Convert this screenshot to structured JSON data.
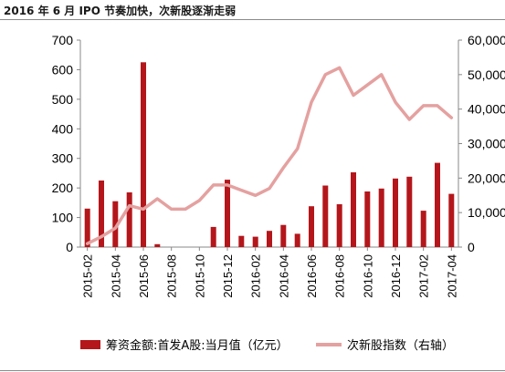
{
  "title": "2016 年 6 月 IPO 节奏加快，次新股逐渐走弱",
  "colors": {
    "bar": "#b4161b",
    "line": "#e4a1a0"
  },
  "chart_data": {
    "type": "bar+line",
    "title": "2016 年 6 月 IPO 节奏加快，次新股逐渐走弱",
    "categories": [
      "2015-02",
      "2015-03",
      "2015-04",
      "2015-05",
      "2015-06",
      "2015-07",
      "2015-08",
      "2015-09",
      "2015-10",
      "2015-11",
      "2015-12",
      "2016-01",
      "2016-02",
      "2016-03",
      "2016-04",
      "2016-05",
      "2016-06",
      "2016-07",
      "2016-08",
      "2016-09",
      "2016-10",
      "2016-11",
      "2016-12",
      "2017-01",
      "2017-02",
      "2017-03",
      "2017-04"
    ],
    "x_tick_labels": [
      "2015-02",
      "2015-04",
      "2015-06",
      "2015-08",
      "2015-10",
      "2015-12",
      "2016-02",
      "2016-04",
      "2016-06",
      "2016-08",
      "2016-10",
      "2016-12",
      "2017-02",
      "2017-04"
    ],
    "left_axis": {
      "min": 0,
      "max": 700,
      "ticks": [
        "0",
        "100",
        "200",
        "300",
        "400",
        "500",
        "600",
        "700"
      ]
    },
    "right_axis": {
      "min": 0,
      "max": 60000,
      "ticks": [
        "0",
        "10,000",
        "20,000",
        "30,000",
        "40,000",
        "50,000",
        "60,000"
      ]
    },
    "series": [
      {
        "name": "筹资金额:首发A股:当月值（亿元）",
        "type": "bar",
        "axis": "left",
        "values": [
          130,
          225,
          155,
          185,
          625,
          10,
          0,
          0,
          0,
          68,
          228,
          38,
          35,
          55,
          75,
          45,
          138,
          208,
          145,
          253,
          188,
          198,
          232,
          238,
          123,
          285,
          180
        ]
      },
      {
        "name": "次新股指数（右轴）",
        "type": "line",
        "axis": "right",
        "values": [
          1000,
          3000,
          5500,
          12000,
          11000,
          14000,
          11000,
          11000,
          13500,
          18000,
          18000,
          16500,
          15000,
          17000,
          23000,
          28500,
          42000,
          50000,
          52000,
          44000,
          47000,
          50000,
          42000,
          37000,
          41000,
          41000,
          37500
        ]
      }
    ],
    "grid": false,
    "legend_position": "bottom"
  }
}
